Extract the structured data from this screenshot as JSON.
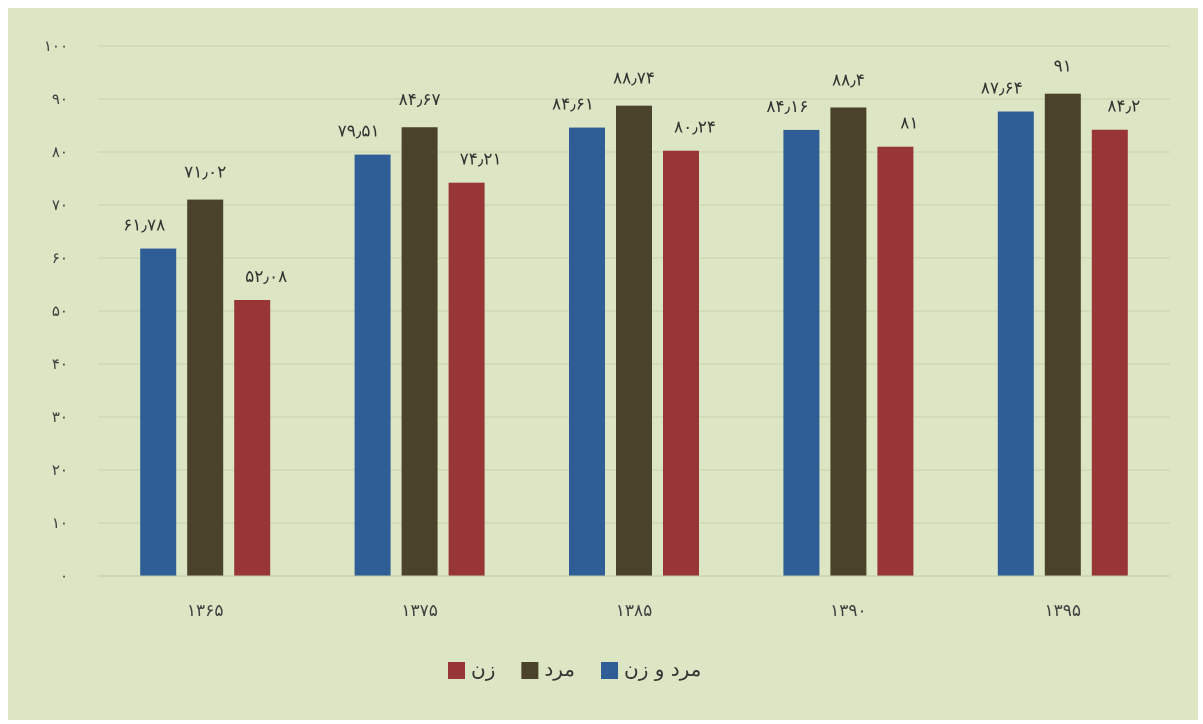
{
  "chart_data": {
    "type": "bar",
    "title": "",
    "xlabel": "",
    "ylabel": "",
    "categories": [
      "۱۳۶۵",
      "۱۳۷۵",
      "۱۳۸۵",
      "۱۳۹۰",
      "۱۳۹۵"
    ],
    "series": [
      {
        "name": "مرد و زن",
        "color": "#2f5d96",
        "values": [
          61.78,
          79.51,
          84.61,
          84.16,
          87.64
        ],
        "labels": [
          "۶۱٫۷۸",
          "۷۹٫۵۱",
          "۸۴٫۶۱",
          "۸۴٫۱۶",
          "۸۷٫۶۴"
        ]
      },
      {
        "name": "مرد",
        "color": "#4a422b",
        "values": [
          71.02,
          84.67,
          88.74,
          88.4,
          91
        ],
        "labels": [
          "۷۱٫۰۲",
          "۸۴٫۶۷",
          "۸۸٫۷۴",
          "۸۸٫۴",
          "۹۱"
        ]
      },
      {
        "name": "زن",
        "color": "#983535",
        "values": [
          52.08,
          74.21,
          80.24,
          81,
          84.2
        ],
        "labels": [
          "۵۲٫۰۸",
          "۷۴٫۲۱",
          "۸۰٫۲۴",
          "۸۱",
          "۸۴٫۲"
        ]
      }
    ],
    "ylim": [
      0,
      100
    ],
    "yticks": [
      0,
      10,
      20,
      30,
      40,
      50,
      60,
      70,
      80,
      90,
      100
    ],
    "ytick_labels": [
      "۰",
      "۱۰",
      "۲۰",
      "۳۰",
      "۴۰",
      "۵۰",
      "۶۰",
      "۷۰",
      "۸۰",
      "۹۰",
      "۱۰۰"
    ],
    "grid": true,
    "legend": "bottom-center"
  }
}
